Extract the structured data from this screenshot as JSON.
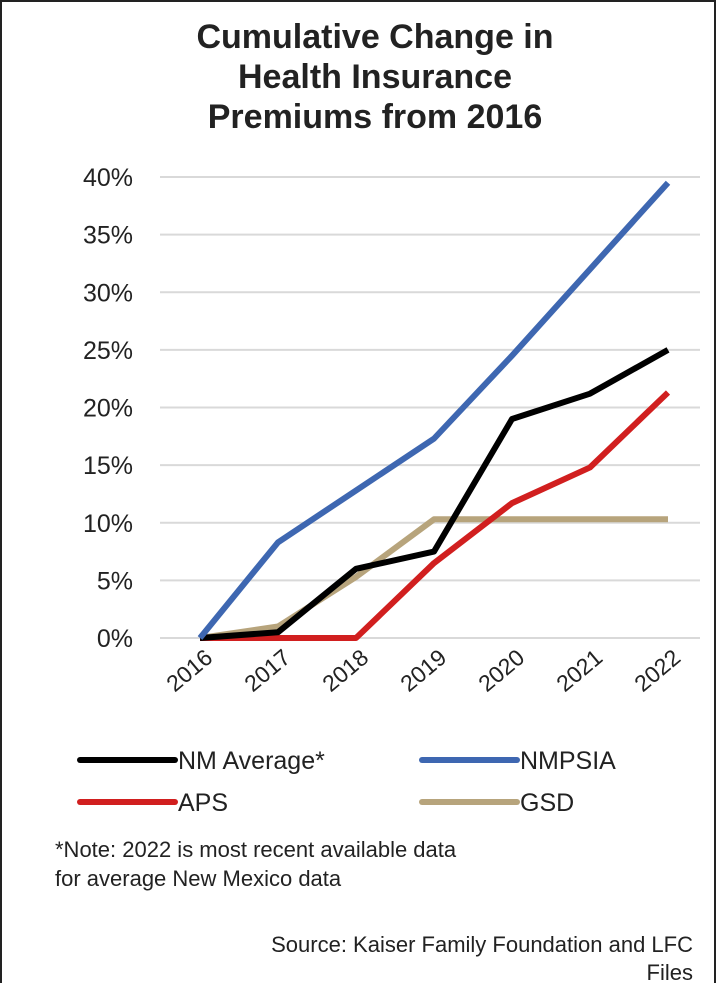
{
  "chart_data": {
    "type": "line",
    "title": [
      "Cumulative Change in",
      "Health Insurance",
      "Premiums from 2016"
    ],
    "categories": [
      "2016",
      "2017",
      "2018",
      "2019",
      "2020",
      "2021",
      "2022"
    ],
    "series": [
      {
        "name": "NM Average*",
        "color": "#000000",
        "values": [
          0,
          0.5,
          6,
          7.5,
          19,
          21.2,
          25
        ]
      },
      {
        "name": "NMPSIA",
        "color": "#3e67b1",
        "values": [
          0,
          8.3,
          12.8,
          17.3,
          24.5,
          32,
          39.5
        ]
      },
      {
        "name": "APS",
        "color": "#d11f1f",
        "values": [
          0,
          0,
          0,
          6.5,
          11.7,
          14.8,
          21.3
        ]
      },
      {
        "name": "GSD",
        "color": "#b7a47c",
        "values": [
          0,
          1,
          5.3,
          10.3,
          10.3,
          10.3,
          10.3
        ]
      }
    ],
    "ylim": [
      0,
      40
    ],
    "yticks": [
      {
        "value": 0,
        "label": "0%"
      },
      {
        "value": 5,
        "label": "5%"
      },
      {
        "value": 10,
        "label": "10%"
      },
      {
        "value": 15,
        "label": "15%"
      },
      {
        "value": 20,
        "label": "20%"
      },
      {
        "value": 25,
        "label": "25%"
      },
      {
        "value": 30,
        "label": "30%"
      },
      {
        "value": 35,
        "label": "35%"
      },
      {
        "value": 40,
        "label": "40%"
      }
    ],
    "grid": true,
    "note": [
      "*Note: 2022 is most recent available data",
      "for average New Mexico data"
    ],
    "source": [
      "Source: Kaiser Family Foundation and LFC",
      "Files"
    ]
  }
}
